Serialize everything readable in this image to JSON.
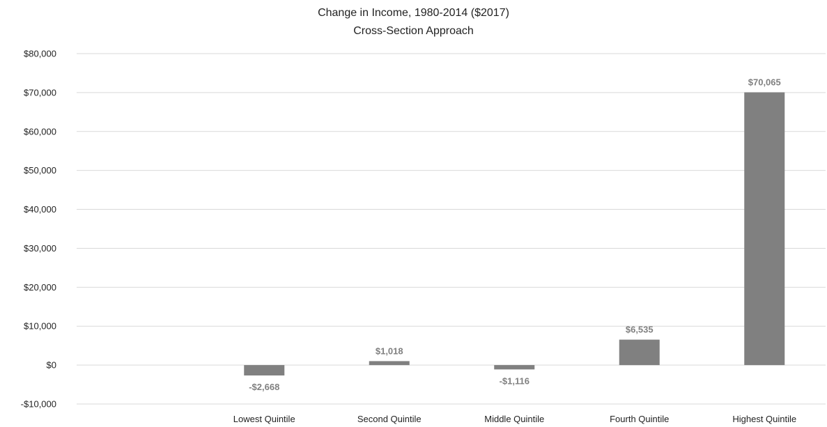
{
  "chart_data": {
    "type": "bar",
    "title": "Change in Income, 1980-2014 ($2017)",
    "subtitle": "Cross-Section Approach",
    "xlabel": "",
    "ylabel": "",
    "categories": [
      "",
      "Lowest Quintile",
      "Second Quintile",
      "Middle Quintile",
      "Fourth Quintile",
      "Highest Quintile"
    ],
    "values": [
      null,
      -2668,
      1018,
      -1116,
      6535,
      70065
    ],
    "data_labels": [
      "",
      "-$2,668",
      "$1,018",
      "-$1,116",
      "$6,535",
      "$70,065"
    ],
    "ylim": [
      -10000,
      80000
    ],
    "yticks": [
      -10000,
      0,
      10000,
      20000,
      30000,
      40000,
      50000,
      60000,
      70000,
      80000
    ],
    "ytick_labels": [
      "-$10,000",
      "$0",
      "$10,000",
      "$20,000",
      "$30,000",
      "$40,000",
      "$50,000",
      "$60,000",
      "$70,000",
      "$80,000"
    ],
    "grid": true,
    "legend": "none",
    "bar_color": "#808080",
    "label_color": "#808080",
    "grid_color": "#d9d9d9"
  }
}
